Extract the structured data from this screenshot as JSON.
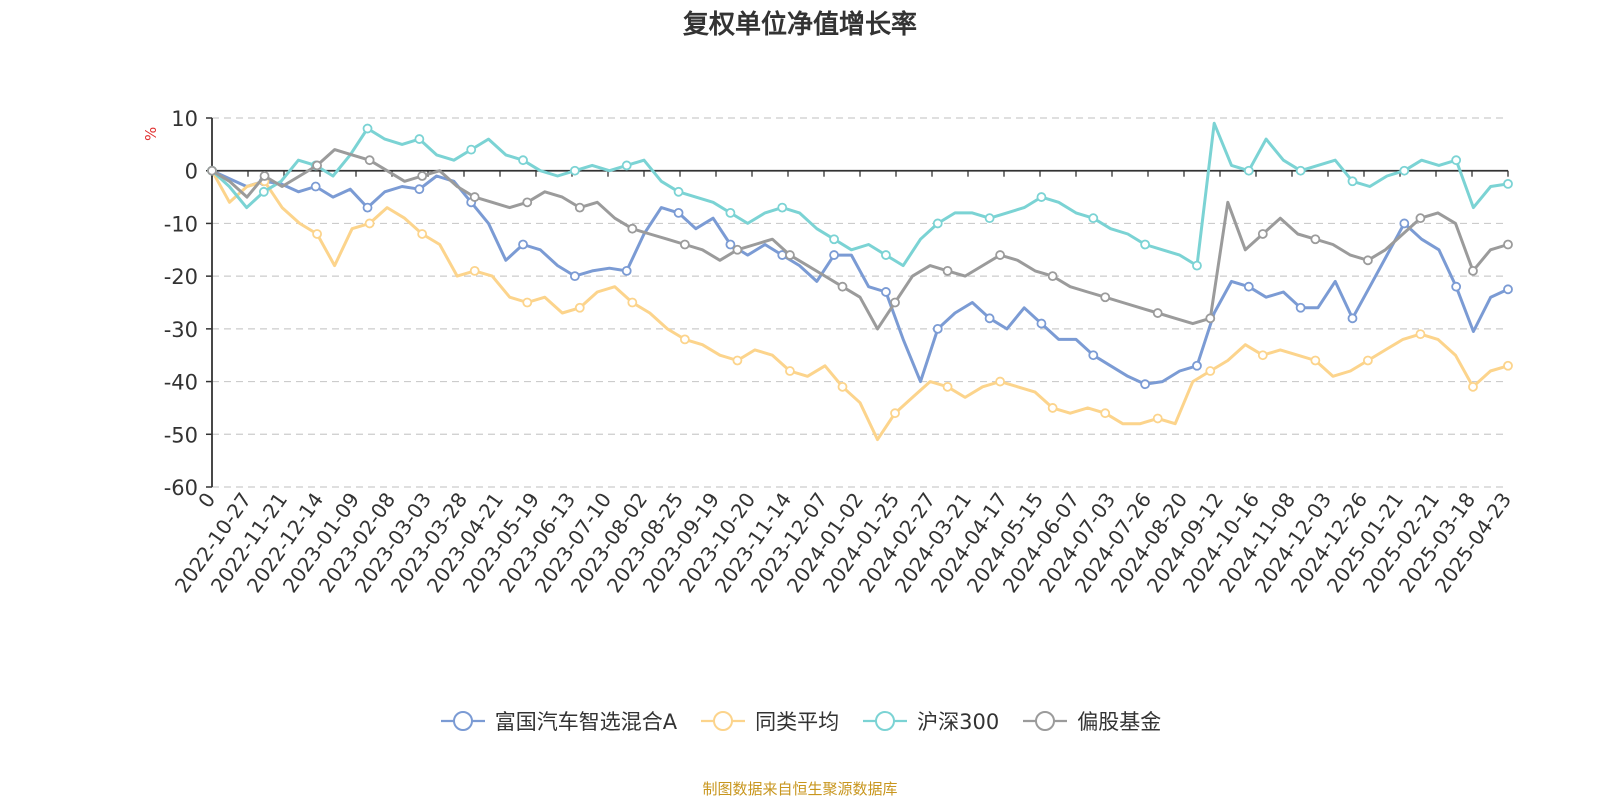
{
  "chart_data": {
    "type": "line",
    "title": "复权单位净值增长率",
    "ylabel": "%",
    "ylim": [
      -60,
      10
    ],
    "yticks": [
      10,
      0,
      -10,
      -20,
      -30,
      -40,
      -50,
      -60
    ],
    "grid": true,
    "legend_position": "bottom",
    "x_tick_labels": [
      "0",
      "2022-10-27",
      "2022-11-21",
      "2022-12-14",
      "2023-01-09",
      "2023-02-08",
      "2023-03-03",
      "2023-03-28",
      "2023-04-21",
      "2023-05-19",
      "2023-06-13",
      "2023-07-10",
      "2023-08-02",
      "2023-08-25",
      "2023-09-19",
      "2023-10-20",
      "2023-11-14",
      "2023-12-07",
      "2024-01-02",
      "2024-01-25",
      "2024-02-27",
      "2024-03-21",
      "2024-04-17",
      "2024-05-15",
      "2024-06-07",
      "2024-07-03",
      "2024-07-26",
      "2024-08-20",
      "2024-09-12",
      "2024-10-16",
      "2024-11-08",
      "2024-12-03",
      "2024-12-26",
      "2025-01-21",
      "2025-02-21",
      "2025-03-18",
      "2025-04-23"
    ],
    "series": [
      {
        "name": "富国汽车智选混合A",
        "color": "#7b9bd4",
        "values": [
          0,
          -1.5,
          -3,
          -2,
          -2.5,
          -4,
          -3,
          -5,
          -3.5,
          -7,
          -4,
          -3,
          -3.5,
          -1,
          -2,
          -6,
          -10,
          -17,
          -14,
          -15,
          -18,
          -20,
          -19,
          -18.5,
          -19,
          -12,
          -7,
          -8,
          -11,
          -9,
          -14,
          -16,
          -14,
          -16,
          -18,
          -21,
          -16,
          -16,
          -22,
          -23,
          -32,
          -40,
          -30,
          -27,
          -25,
          -28,
          -30,
          -26,
          -29,
          -32,
          -32,
          -35,
          -37,
          -39,
          -40.5,
          -40,
          -38,
          -37,
          -27,
          -21,
          -22,
          -24,
          -23,
          -26,
          -26,
          -21,
          -28,
          -22,
          -16,
          -10,
          -13,
          -15,
          -22,
          -30.5,
          -24,
          -22.5
        ]
      },
      {
        "name": "同类平均",
        "color": "#fcd48c",
        "values": [
          0,
          -6,
          -3,
          -2,
          -7,
          -10,
          -12,
          -18,
          -11,
          -10,
          -7,
          -9,
          -12,
          -14,
          -20,
          -19,
          -20,
          -24,
          -25,
          -24,
          -27,
          -26,
          -23,
          -22,
          -25,
          -27,
          -30,
          -32,
          -33,
          -35,
          -36,
          -34,
          -35,
          -38,
          -39,
          -37,
          -41,
          -44,
          -51,
          -46,
          -43,
          -40,
          -41,
          -43,
          -41,
          -40,
          -41,
          -42,
          -45,
          -46,
          -45,
          -46,
          -48,
          -48,
          -47,
          -48,
          -40,
          -38,
          -36,
          -33,
          -35,
          -34,
          -35,
          -36,
          -39,
          -38,
          -36,
          -34,
          -32,
          -31,
          -32,
          -35,
          -41,
          -38,
          -37
        ]
      },
      {
        "name": "沪深300",
        "color": "#7bd3d4",
        "values": [
          0,
          -3,
          -7,
          -4,
          -2,
          2,
          1,
          -1,
          3,
          8,
          6,
          5,
          6,
          3,
          2,
          4,
          6,
          3,
          2,
          0,
          -1,
          0,
          1,
          0,
          1,
          2,
          -2,
          -4,
          -5,
          -6,
          -8,
          -10,
          -8,
          -7,
          -8,
          -11,
          -13,
          -15,
          -14,
          -16,
          -18,
          -13,
          -10,
          -8,
          -8,
          -9,
          -8,
          -7,
          -5,
          -6,
          -8,
          -9,
          -11,
          -12,
          -14,
          -15,
          -16,
          -18,
          9,
          1,
          0,
          6,
          2,
          0,
          1,
          2,
          -2,
          -3,
          -1,
          0,
          2,
          1,
          2,
          -7,
          -3,
          -2.5
        ]
      },
      {
        "name": "偏股基金",
        "color": "#9b9b9b",
        "values": [
          0,
          -2,
          -5,
          -1,
          -3,
          -1,
          1,
          4,
          3,
          2,
          0,
          -2,
          -1,
          0,
          -3,
          -5,
          -6,
          -7,
          -6,
          -4,
          -5,
          -7,
          -6,
          -9,
          -11,
          -12,
          -13,
          -14,
          -15,
          -17,
          -15,
          -14,
          -13,
          -16,
          -18,
          -20,
          -22,
          -24,
          -30,
          -25,
          -20,
          -18,
          -19,
          -20,
          -18,
          -16,
          -17,
          -19,
          -20,
          -22,
          -23,
          -24,
          -25,
          -26,
          -27,
          -28,
          -29,
          -28,
          -6,
          -15,
          -12,
          -9,
          -12,
          -13,
          -14,
          -16,
          -17,
          -15,
          -12,
          -9,
          -8,
          -10,
          -19,
          -15,
          -14
        ]
      }
    ]
  },
  "legend": {
    "items": [
      "富国汽车智选混合A",
      "同类平均",
      "沪深300",
      "偏股基金"
    ]
  },
  "source_note": "制图数据来自恒生聚源数据库"
}
